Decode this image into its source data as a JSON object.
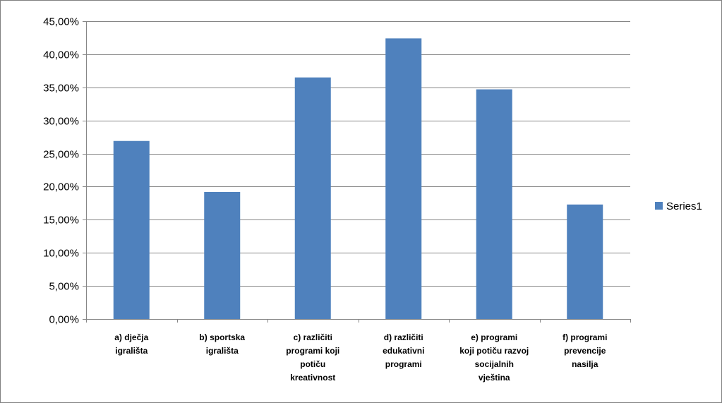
{
  "chart_data": {
    "type": "bar",
    "title": "",
    "xlabel": "",
    "ylabel": "",
    "ylim": [
      0,
      45
    ],
    "y_ticks": [
      "0,00%",
      "5,00%",
      "10,00%",
      "15,00%",
      "20,00%",
      "25,00%",
      "30,00%",
      "35,00%",
      "40,00%",
      "45,00%"
    ],
    "y_tick_values": [
      0,
      5,
      10,
      15,
      20,
      25,
      30,
      35,
      40,
      45
    ],
    "grid": true,
    "legend_position": "right",
    "bar_color": "#4f81bd",
    "categories": [
      [
        "a)    dječja",
        "igrališta"
      ],
      [
        "b)    sportska",
        "igrališta"
      ],
      [
        "c)    različiti",
        "programi koji",
        "potiču",
        "kreativnost"
      ],
      [
        "d)    različiti",
        "edukativni",
        "programi"
      ],
      [
        "e)    programi",
        "koji potiču razvoj",
        "socijalnih",
        "vještina"
      ],
      [
        "f)    programi",
        "prevencije",
        "nasilja"
      ]
    ],
    "series": [
      {
        "name": "Series1",
        "values": [
          26.9,
          19.2,
          36.5,
          42.4,
          34.7,
          17.3
        ]
      }
    ]
  }
}
